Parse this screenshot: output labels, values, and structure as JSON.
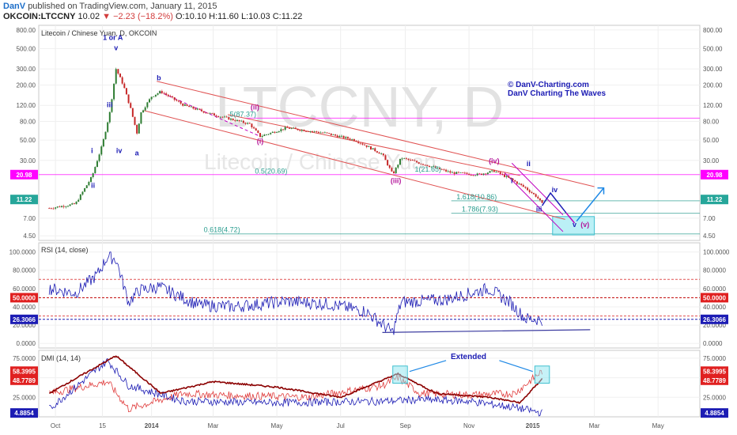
{
  "header": {
    "author": "DanV",
    "published": "published on TradingView.com, January 11, 2015",
    "symbol": "OKCOIN:LTCCNY",
    "last": "10.02",
    "change": "−2.23 (−18.2%)",
    "ohlc": "O:10.10 H:11.60 L:10.03 C:11.22"
  },
  "colors": {
    "candle_up": "#2e7d32",
    "candle_down": "#c62828",
    "channel": "#e05252",
    "magenta": "#c000c0",
    "rsi": "#1c1cb4",
    "dmi_plus": "#e03c3c",
    "dmi_minus": "#1c1cb4",
    "adx": "#8b0000",
    "badge_blue": "#1c1cb4",
    "badge_red": "#e02020",
    "badge_green": "#26a69a",
    "badge_magenta": "#ff00ff",
    "highlight": "#8ee6f0"
  },
  "chart_data": [
    {
      "type": "candlestick",
      "title": "Litecoin / Chinese Yuan, D, OKCOIN",
      "watermark": "LTCCNY, D",
      "watermark_sub": "Litecoin / Chinese Yuan",
      "scale": "log",
      "ylim": [
        4.0,
        900
      ],
      "y_ticks": [
        "800.00",
        "500.00",
        "300.00",
        "200.00",
        "120.00",
        "80.00",
        "50.00",
        "30.00",
        "20.98",
        "11.22",
        "7.00",
        "4.50"
      ],
      "x_ticks": [
        "Oct",
        "15",
        "2014",
        "Mar",
        "May",
        "Jul",
        "Sep",
        "Nov",
        "2015",
        "Mar",
        "May"
      ],
      "price_badges": [
        {
          "label": "20.98",
          "value": 20.98,
          "color": "magenta"
        },
        {
          "label": "11.22",
          "value": 11.22,
          "color": "green"
        }
      ],
      "key_points": [
        {
          "date": "2013-09-25",
          "value": 9
        },
        {
          "date": "2013-10-20",
          "value": 10
        },
        {
          "date": "2013-11-05",
          "value": 20
        },
        {
          "date": "2013-11-15",
          "value": 45
        },
        {
          "date": "2013-11-22",
          "value": 100
        },
        {
          "date": "2013-11-28",
          "value": 300
        },
        {
          "date": "2013-12-05",
          "value": 200
        },
        {
          "date": "2013-12-12",
          "value": 110
        },
        {
          "date": "2013-12-18",
          "value": 60
        },
        {
          "date": "2013-12-22",
          "value": 100
        },
        {
          "date": "2014-01-01",
          "value": 150
        },
        {
          "date": "2014-01-10",
          "value": 170
        },
        {
          "date": "2014-02-01",
          "value": 120
        },
        {
          "date": "2014-03-01",
          "value": 95
        },
        {
          "date": "2014-04-05",
          "value": 75
        },
        {
          "date": "2014-04-15",
          "value": 55
        },
        {
          "date": "2014-05-10",
          "value": 68
        },
        {
          "date": "2014-06-15",
          "value": 60
        },
        {
          "date": "2014-07-15",
          "value": 50
        },
        {
          "date": "2014-08-10",
          "value": 35
        },
        {
          "date": "2014-08-20",
          "value": 21
        },
        {
          "date": "2014-08-28",
          "value": 32
        },
        {
          "date": "2014-09-20",
          "value": 27
        },
        {
          "date": "2014-10-15",
          "value": 22
        },
        {
          "date": "2014-11-10",
          "value": 21
        },
        {
          "date": "2014-11-25",
          "value": 23
        },
        {
          "date": "2014-12-10",
          "value": 19
        },
        {
          "date": "2014-12-25",
          "value": 15
        },
        {
          "date": "2015-01-05",
          "value": 12
        },
        {
          "date": "2015-01-10",
          "value": 10
        }
      ],
      "horizontal_lines": [
        {
          "value": 87,
          "color": "magenta"
        },
        {
          "value": 20.98,
          "color": "magenta"
        },
        {
          "value": 10.86,
          "color": "teal"
        },
        {
          "value": 7.93,
          "color": "teal"
        },
        {
          "value": 4.72,
          "color": "teal"
        }
      ],
      "fib_labels": [
        {
          "text": "0.5(20.69)",
          "value": 20.69,
          "date": "2014-04-10"
        },
        {
          "text": "1(21.65)",
          "value": 21.65,
          "date": "2014-09-10"
        },
        {
          "text": "1.618(10.86)",
          "value": 10.86,
          "date": "2014-10-20"
        },
        {
          "text": "1.786(7.93)",
          "value": 7.93,
          "date": "2014-10-25"
        },
        {
          "text": "0.618(4.72)",
          "value": 4.72,
          "date": "2014-02-20"
        },
        {
          "text": ".5(87.37)",
          "value": 87,
          "date": "2014-03-15"
        }
      ],
      "wave_labels": [
        {
          "text": "1 or A",
          "date": "2013-11-25",
          "value": 620,
          "color": "blue"
        },
        {
          "text": "v",
          "date": "2013-11-28",
          "value": 480,
          "color": "blue"
        },
        {
          "text": "iii",
          "date": "2013-11-22",
          "value": 115,
          "color": "blue"
        },
        {
          "text": "iv",
          "date": "2013-12-01",
          "value": 36,
          "color": "blue"
        },
        {
          "text": "a",
          "date": "2013-12-18",
          "value": 34,
          "color": "blue"
        },
        {
          "text": "b",
          "date": "2014-01-08",
          "value": 225,
          "color": "blue"
        },
        {
          "text": "i",
          "date": "2013-11-05",
          "value": 36,
          "color": "blue"
        },
        {
          "text": "ii",
          "date": "2013-11-06",
          "value": 15,
          "color": "blue"
        },
        {
          "text": "(ii)",
          "date": "2014-04-10",
          "value": 108,
          "color": "magenta"
        },
        {
          "text": "(i)",
          "date": "2014-04-15",
          "value": 46,
          "color": "magenta"
        },
        {
          "text": "(iii)",
          "date": "2014-08-23",
          "value": 17,
          "color": "magenta"
        },
        {
          "text": "(iv)",
          "date": "2014-11-25",
          "value": 28,
          "color": "magenta"
        },
        {
          "text": "i",
          "date": "2014-12-12",
          "value": 17,
          "color": "blue"
        },
        {
          "text": "ii",
          "date": "2014-12-28",
          "value": 26,
          "color": "blue"
        },
        {
          "text": "iii",
          "date": "2015-01-07",
          "value": 8.3,
          "color": "blue"
        },
        {
          "text": "iv",
          "date": "2015-01-22",
          "value": 13.5,
          "color": "blue"
        },
        {
          "text": "v",
          "date": "2015-02-10",
          "value": 5.6,
          "color": "blue"
        },
        {
          "text": "(v)",
          "date": "2015-02-20",
          "value": 5.6,
          "color": "magenta"
        }
      ],
      "copyright": [
        "© DanV-Charting.com",
        "DanV  Charting The Waves"
      ]
    },
    {
      "type": "line",
      "title": "RSI (14, close)",
      "ylim": [
        -5,
        110
      ],
      "y_ticks": [
        "100.0000",
        "80.0000",
        "60.0000",
        "40.0000",
        "20.0000",
        "0.0000"
      ],
      "badges": [
        {
          "label": "50.0000",
          "value": 50,
          "color": "red"
        },
        {
          "label": "26.3066",
          "value": 26.3066,
          "color": "blue"
        }
      ],
      "levels": [
        70,
        50,
        30
      ],
      "key_points": [
        {
          "date": "2013-09-25",
          "value": 60
        },
        {
          "date": "2013-10-20",
          "value": 55
        },
        {
          "date": "2013-11-10",
          "value": 75
        },
        {
          "date": "2013-11-20",
          "value": 95
        },
        {
          "date": "2013-11-28",
          "value": 92
        },
        {
          "date": "2013-12-10",
          "value": 45
        },
        {
          "date": "2013-12-20",
          "value": 58
        },
        {
          "date": "2014-01-08",
          "value": 62
        },
        {
          "date": "2014-02-15",
          "value": 42
        },
        {
          "date": "2014-03-20",
          "value": 40
        },
        {
          "date": "2014-05-10",
          "value": 46
        },
        {
          "date": "2014-06-20",
          "value": 43
        },
        {
          "date": "2014-07-25",
          "value": 35
        },
        {
          "date": "2014-08-20",
          "value": 12
        },
        {
          "date": "2014-08-28",
          "value": 45
        },
        {
          "date": "2014-10-10",
          "value": 48
        },
        {
          "date": "2014-11-20",
          "value": 60
        },
        {
          "date": "2014-12-10",
          "value": 45
        },
        {
          "date": "2014-12-25",
          "value": 27
        },
        {
          "date": "2015-01-10",
          "value": 26
        }
      ]
    },
    {
      "type": "line",
      "title": "DMI (14, 14)",
      "ylim": [
        0,
        85
      ],
      "y_ticks": [
        "75.0000",
        "50.0000",
        "25.0000"
      ],
      "badges": [
        {
          "label": "58.3995",
          "value": 58.3995,
          "color": "red"
        },
        {
          "label": "48.7789",
          "value": 48.7789,
          "color": "red"
        },
        {
          "label": "4.8854",
          "value": 4.8854,
          "color": "blue"
        }
      ],
      "annotation": "Extended",
      "series": [
        {
          "key": "plus",
          "key_points": [
            {
              "date": "2013-09-25",
              "value": 30
            },
            {
              "date": "2013-11-20",
              "value": 45
            },
            {
              "date": "2013-12-10",
              "value": 10
            },
            {
              "date": "2014-02-01",
              "value": 30
            },
            {
              "date": "2014-03-01",
              "value": 28
            },
            {
              "date": "2014-06-01",
              "value": 25
            },
            {
              "date": "2014-08-10",
              "value": 40
            },
            {
              "date": "2014-08-25",
              "value": 50
            },
            {
              "date": "2014-09-15",
              "value": 30
            },
            {
              "date": "2014-11-01",
              "value": 28
            },
            {
              "date": "2014-12-15",
              "value": 30
            },
            {
              "date": "2015-01-10",
              "value": 58.3995
            }
          ]
        },
        {
          "key": "minus",
          "key_points": [
            {
              "date": "2013-09-25",
              "value": 10
            },
            {
              "date": "2013-11-20",
              "value": 72
            },
            {
              "date": "2013-12-10",
              "value": 40
            },
            {
              "date": "2014-02-01",
              "value": 20
            },
            {
              "date": "2014-05-01",
              "value": 18
            },
            {
              "date": "2014-08-10",
              "value": 20
            },
            {
              "date": "2014-09-15",
              "value": 22
            },
            {
              "date": "2014-11-01",
              "value": 20
            },
            {
              "date": "2014-12-15",
              "value": 12
            },
            {
              "date": "2015-01-10",
              "value": 4.8854
            }
          ]
        },
        {
          "key": "adx",
          "key_points": [
            {
              "date": "2013-09-25",
              "value": 30
            },
            {
              "date": "2013-11-28",
              "value": 78
            },
            {
              "date": "2014-01-10",
              "value": 30
            },
            {
              "date": "2014-03-01",
              "value": 45
            },
            {
              "date": "2014-05-01",
              "value": 38
            },
            {
              "date": "2014-07-01",
              "value": 25
            },
            {
              "date": "2014-08-25",
              "value": 55
            },
            {
              "date": "2014-10-01",
              "value": 30
            },
            {
              "date": "2014-11-20",
              "value": 25
            },
            {
              "date": "2014-12-20",
              "value": 18
            },
            {
              "date": "2015-01-10",
              "value": 48.7789
            }
          ]
        }
      ]
    }
  ]
}
